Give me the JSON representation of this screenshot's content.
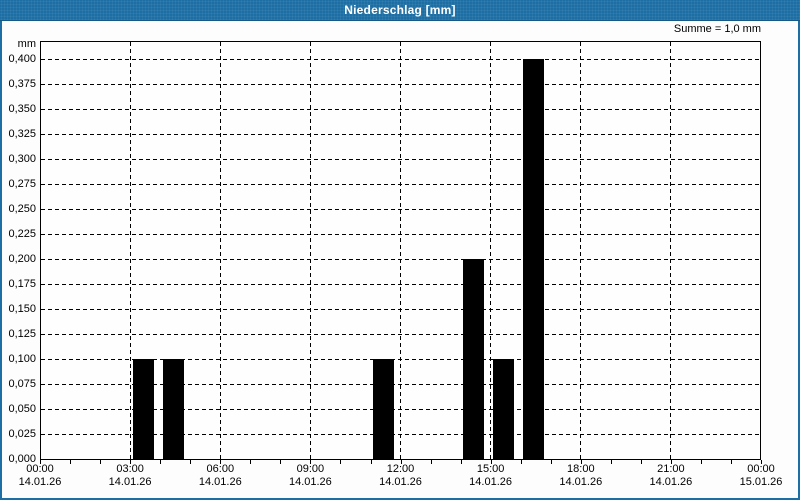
{
  "window": {
    "title": "Niederschlag [mm]"
  },
  "chart_data": {
    "type": "bar",
    "title": "Niederschlag [mm]",
    "summary": "Summe = 1,0 mm",
    "unit": "mm",
    "bar_color": "#000000",
    "accent_color": "#1c6ea4",
    "grid": "dashed",
    "y_axis": {
      "min_mm": 0.0,
      "max_mm": 0.4,
      "step_mm": 0.025,
      "tick_labels": [
        "0,400",
        "0,375",
        "0,350",
        "0,325",
        "0,300",
        "0,275",
        "0,250",
        "0,225",
        "0,200",
        "0,175",
        "0,150",
        "0,125",
        "0,100",
        "0,075",
        "0,050",
        "0,025",
        "0,000"
      ]
    },
    "x_axis": {
      "hours_total": 24,
      "major_step_hours": 3,
      "minor_step_hours": 1,
      "tick_labels": [
        {
          "time": "00:00",
          "date": "14.01.26"
        },
        {
          "time": "03:00",
          "date": "14.01.26"
        },
        {
          "time": "06:00",
          "date": "14.01.26"
        },
        {
          "time": "09:00",
          "date": "14.01.26"
        },
        {
          "time": "12:00",
          "date": "14.01.26"
        },
        {
          "time": "15:00",
          "date": "14.01.26"
        },
        {
          "time": "18:00",
          "date": "14.01.26"
        },
        {
          "time": "21:00",
          "date": "14.01.26"
        },
        {
          "time": "00:00",
          "date": "15.01.26"
        }
      ]
    },
    "bars": [
      {
        "hour_index": 3,
        "interval": "03:00-04:00",
        "date": "14.01.26",
        "value_mm": 0.1
      },
      {
        "hour_index": 4,
        "interval": "04:00-05:00",
        "date": "14.01.26",
        "value_mm": 0.1
      },
      {
        "hour_index": 11,
        "interval": "11:00-12:00",
        "date": "14.01.26",
        "value_mm": 0.1
      },
      {
        "hour_index": 14,
        "interval": "14:00-15:00",
        "date": "14.01.26",
        "value_mm": 0.2
      },
      {
        "hour_index": 15,
        "interval": "15:00-16:00",
        "date": "14.01.26",
        "value_mm": 0.1
      },
      {
        "hour_index": 16,
        "interval": "16:00-17:00",
        "date": "14.01.26",
        "value_mm": 0.4
      }
    ],
    "total_mm": 1.0
  }
}
